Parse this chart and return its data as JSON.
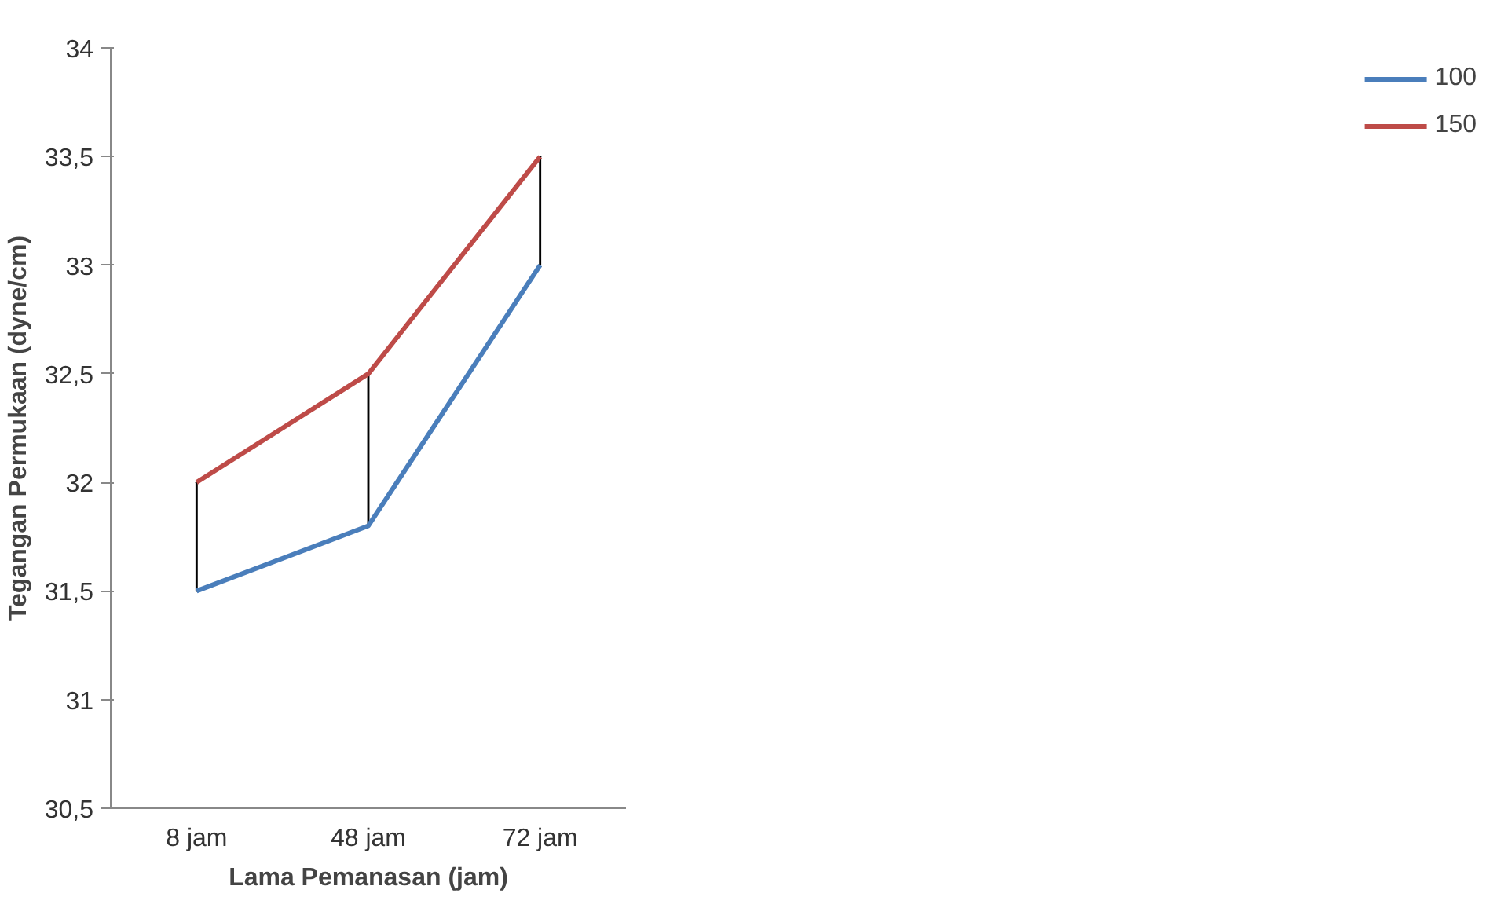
{
  "chart_data": {
    "type": "line",
    "xlabel": "Lama Pemanasan (jam)",
    "ylabel": "Tegangan Permukaan (dyne/cm)",
    "categories": [
      "8 jam",
      "48 jam",
      "72 jam"
    ],
    "series": [
      {
        "name": "100",
        "color": "#4a7ebb",
        "values": [
          31.5,
          31.8,
          33.0
        ]
      },
      {
        "name": "150",
        "color": "#be4b48",
        "values": [
          32.0,
          32.5,
          33.5
        ]
      },
      {
        "type": "bar",
        "color": "#000000",
        "base": [
          31.5,
          31.8,
          33.0
        ],
        "values": [
          0.5,
          0.7,
          0.5
        ]
      }
    ],
    "ylim": [
      30.5,
      34
    ],
    "yticks": [
      {
        "value": 30.5,
        "label": "30,5"
      },
      31,
      {
        "value": 31.5,
        "label": "31,5"
      },
      32,
      {
        "value": 32.5,
        "label": "32,5"
      },
      33,
      {
        "value": 33.5,
        "label": "33,5"
      },
      34
    ],
    "grid": false,
    "legend": "right",
    "marker": "none",
    "line_style": "solid"
  }
}
